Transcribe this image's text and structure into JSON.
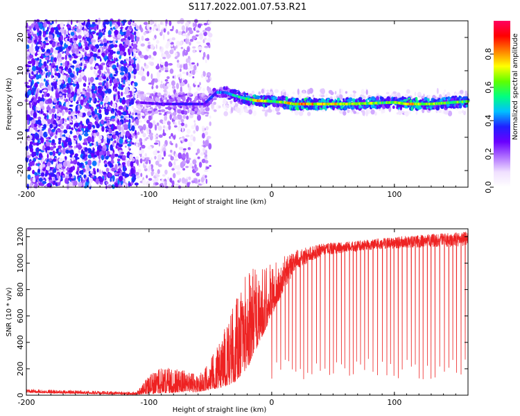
{
  "figure": {
    "title": "S117.2022.001.07.53.R21"
  },
  "chart_data": [
    {
      "type": "heatmap",
      "xlabel": "Height of straight line (km)",
      "ylabel": "Frequency (Hz)",
      "xlim": [
        -200,
        160
      ],
      "ylim": [
        -25,
        25
      ],
      "xticks": [
        -200,
        -100,
        0,
        100
      ],
      "yticks": [
        -20,
        -10,
        0,
        10,
        20
      ],
      "colorbar": {
        "label": "Normalized spectral amplitude",
        "range": [
          0.0,
          1.0
        ],
        "ticks": [
          0.0,
          0.2,
          0.4,
          0.6,
          0.8
        ],
        "tick_labels": [
          "0.0",
          "0.2",
          "0.4",
          "0.6",
          "0.8"
        ],
        "colormap": [
          "#ffffff",
          "#f0e0ff",
          "#b070ff",
          "#6a00ff",
          "#2020ff",
          "#00c0ff",
          "#00ff80",
          "#60ff00",
          "#ffff00",
          "#ff8000",
          "#ff0000",
          "#ff0060"
        ]
      },
      "ridge": [
        {
          "x": -110,
          "y": 0.5,
          "amp": 0.25
        },
        {
          "x": -90,
          "y": 0.0,
          "amp": 0.3
        },
        {
          "x": -70,
          "y": 0.0,
          "amp": 0.35
        },
        {
          "x": -55,
          "y": 0.0,
          "amp": 0.3
        },
        {
          "x": -45,
          "y": 3.5,
          "amp": 0.4
        },
        {
          "x": -38,
          "y": 3.5,
          "amp": 0.45
        },
        {
          "x": -30,
          "y": 2.5,
          "amp": 0.5
        },
        {
          "x": -20,
          "y": 1.5,
          "amp": 0.55
        },
        {
          "x": -12,
          "y": 1.0,
          "amp": 0.8
        },
        {
          "x": 0,
          "y": 0.8,
          "amp": 0.6
        },
        {
          "x": 10,
          "y": 0.5,
          "amp": 0.65
        },
        {
          "x": 18,
          "y": 0.0,
          "amp": 0.8
        },
        {
          "x": 40,
          "y": 0.0,
          "amp": 0.75
        },
        {
          "x": 60,
          "y": 0.0,
          "amp": 0.7
        },
        {
          "x": 80,
          "y": 0.2,
          "amp": 0.65
        },
        {
          "x": 100,
          "y": 0.5,
          "amp": 0.6
        },
        {
          "x": 110,
          "y": 0.0,
          "amp": 0.8
        },
        {
          "x": 130,
          "y": 0.0,
          "amp": 0.65
        },
        {
          "x": 160,
          "y": 0.8,
          "amp": 0.6
        }
      ],
      "noise_regions": [
        {
          "x": [
            -200,
            -110
          ],
          "y": [
            -25,
            25
          ],
          "density": 0.9,
          "amp": 0.35
        },
        {
          "x": [
            -110,
            -50
          ],
          "y": [
            -25,
            25
          ],
          "density": 0.4,
          "amp": 0.18
        },
        {
          "x": [
            -50,
            160
          ],
          "y": [
            -3,
            4
          ],
          "density": 0.5,
          "amp": 0.12
        }
      ],
      "line_color": "#000000"
    },
    {
      "type": "line",
      "xlabel": "Height of straight line (km)",
      "ylabel": "SNR (10 * v/v)",
      "xlim": [
        -200,
        160
      ],
      "ylim": [
        0,
        1260
      ],
      "xticks": [
        -200,
        -100,
        0,
        100
      ],
      "yticks": [
        0,
        200,
        400,
        600,
        800,
        1000,
        1200
      ],
      "series": [
        {
          "color": "#ee2222",
          "envelope": [
            {
              "x": -200,
              "base": 20,
              "peak": 45
            },
            {
              "x": -150,
              "base": 10,
              "peak": 35
            },
            {
              "x": -110,
              "base": 5,
              "peak": 25
            },
            {
              "x": -100,
              "base": 10,
              "peak": 150
            },
            {
              "x": -90,
              "base": 15,
              "peak": 220
            },
            {
              "x": -75,
              "base": 20,
              "peak": 200
            },
            {
              "x": -60,
              "base": 25,
              "peak": 150
            },
            {
              "x": -50,
              "base": 40,
              "peak": 260
            },
            {
              "x": -40,
              "base": 60,
              "peak": 500
            },
            {
              "x": -30,
              "base": 100,
              "peak": 700
            },
            {
              "x": -20,
              "base": 200,
              "peak": 1000
            },
            {
              "x": -10,
              "base": 400,
              "peak": 950
            },
            {
              "x": 0,
              "base": 600,
              "peak": 1000
            },
            {
              "x": 10,
              "base": 800,
              "peak": 1050
            },
            {
              "x": 20,
              "base": 950,
              "peak": 1100
            },
            {
              "x": 40,
              "base": 1050,
              "peak": 1150
            },
            {
              "x": 60,
              "base": 1080,
              "peak": 1160
            },
            {
              "x": 80,
              "base": 1100,
              "peak": 1180
            },
            {
              "x": 100,
              "base": 1110,
              "peak": 1200
            },
            {
              "x": 130,
              "base": 1120,
              "peak": 1220
            },
            {
              "x": 160,
              "base": 1130,
              "peak": 1240
            }
          ],
          "dropouts": {
            "start": 0,
            "end": 160,
            "spacing": 3.3,
            "min": 120,
            "max": 280
          }
        }
      ]
    }
  ]
}
